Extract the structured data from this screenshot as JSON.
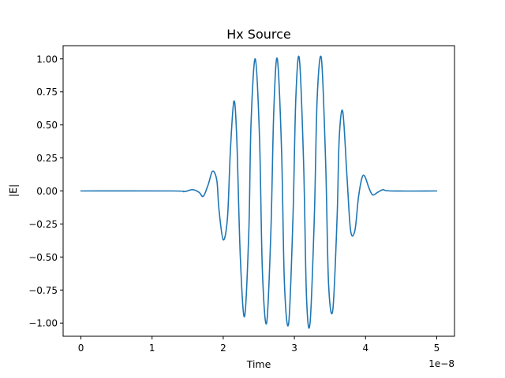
{
  "chart_data": {
    "type": "line",
    "title": "Hx Source",
    "xlabel": "Time",
    "ylabel": "|E|",
    "x_offset_text": "1e−8",
    "xlim": [
      -0.25,
      5.25
    ],
    "ylim": [
      -1.1,
      1.1
    ],
    "xticks": [
      0,
      1,
      2,
      3,
      4,
      5
    ],
    "xtick_labels": [
      "0",
      "1",
      "2",
      "3",
      "4",
      "5"
    ],
    "yticks": [
      1.0,
      0.75,
      0.5,
      0.25,
      0.0,
      -0.25,
      -0.5,
      -0.75,
      -1.0
    ],
    "ytick_labels": [
      "1.00",
      "0.75",
      "0.50",
      "0.25",
      "0.00",
      "−0.25",
      "−0.50",
      "−0.75",
      "−1.00"
    ],
    "grid": false,
    "series_color": "#1f77b4",
    "series": [
      {
        "points": [
          [
            0.0,
            0.0
          ],
          [
            1.3,
            0.0
          ],
          [
            1.45,
            -0.005
          ],
          [
            1.57,
            0.01
          ],
          [
            1.66,
            -0.01
          ],
          [
            1.72,
            -0.04
          ],
          [
            1.79,
            0.05
          ],
          [
            1.85,
            0.15
          ],
          [
            1.91,
            0.08
          ],
          [
            1.94,
            -0.14
          ],
          [
            2.0,
            -0.37
          ],
          [
            2.06,
            -0.2
          ],
          [
            2.1,
            0.3
          ],
          [
            2.15,
            0.68
          ],
          [
            2.19,
            0.4
          ],
          [
            2.24,
            -0.5
          ],
          [
            2.3,
            -0.95
          ],
          [
            2.36,
            -0.3
          ],
          [
            2.39,
            0.5
          ],
          [
            2.45,
            1.0
          ],
          [
            2.51,
            0.4
          ],
          [
            2.55,
            -0.6
          ],
          [
            2.61,
            -1.0
          ],
          [
            2.67,
            -0.3
          ],
          [
            2.71,
            0.6
          ],
          [
            2.76,
            1.0
          ],
          [
            2.82,
            0.3
          ],
          [
            2.86,
            -0.7
          ],
          [
            2.92,
            -1.0
          ],
          [
            2.98,
            -0.2
          ],
          [
            3.02,
            0.7
          ],
          [
            3.07,
            1.0
          ],
          [
            3.13,
            0.2
          ],
          [
            3.17,
            -0.8
          ],
          [
            3.22,
            -1.0
          ],
          [
            3.28,
            -0.2
          ],
          [
            3.32,
            0.7
          ],
          [
            3.38,
            1.0
          ],
          [
            3.44,
            0.2
          ],
          [
            3.48,
            -0.7
          ],
          [
            3.54,
            -0.9
          ],
          [
            3.6,
            -0.2
          ],
          [
            3.63,
            0.4
          ],
          [
            3.68,
            0.6
          ],
          [
            3.74,
            0.1
          ],
          [
            3.79,
            -0.3
          ],
          [
            3.85,
            -0.3
          ],
          [
            3.9,
            -0.05
          ],
          [
            3.95,
            0.1
          ],
          [
            3.99,
            0.11
          ],
          [
            4.05,
            0.02
          ],
          [
            4.1,
            -0.03
          ],
          [
            4.17,
            -0.01
          ],
          [
            4.25,
            0.01
          ],
          [
            4.35,
            0.0
          ],
          [
            5.0,
            0.0
          ]
        ]
      }
    ]
  }
}
